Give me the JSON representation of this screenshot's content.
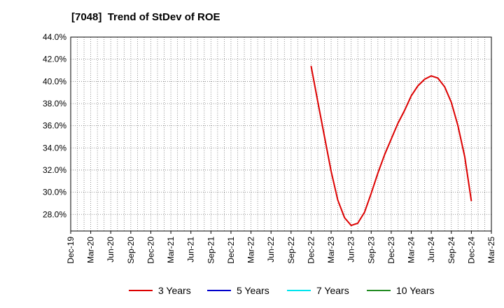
{
  "chart_data": {
    "type": "line",
    "title": "[7048]  Trend of StDev of ROE",
    "xlabel": "",
    "ylabel": "",
    "ylim": [
      26.5,
      44.0
    ],
    "yticks": [
      "28.0%",
      "30.0%",
      "32.0%",
      "34.0%",
      "36.0%",
      "38.0%",
      "40.0%",
      "42.0%",
      "44.0%"
    ],
    "ytick_values": [
      28,
      30,
      32,
      34,
      36,
      38,
      40,
      42,
      44
    ],
    "x_tick_labels": [
      "Dec-19",
      "Mar-20",
      "Jun-20",
      "Sep-20",
      "Dec-20",
      "Mar-21",
      "Jun-21",
      "Sep-21",
      "Dec-21",
      "Mar-22",
      "Jun-22",
      "Sep-22",
      "Dec-22",
      "Mar-23",
      "Jun-23",
      "Sep-23",
      "Dec-23",
      "Mar-24",
      "Jun-24",
      "Sep-24",
      "Dec-24",
      "Mar-25"
    ],
    "x_tick_labels_last": "Mar-25",
    "grid": true,
    "legend_position": "bottom",
    "series": [
      {
        "name": "3 Years",
        "color": "#dd0000",
        "points": [
          [
            12.0,
            41.4
          ],
          [
            12.33,
            38.2
          ],
          [
            12.67,
            35.0
          ],
          [
            13.0,
            31.9
          ],
          [
            13.33,
            29.3
          ],
          [
            13.67,
            27.7
          ],
          [
            14.0,
            27.0
          ],
          [
            14.33,
            27.2
          ],
          [
            14.67,
            28.2
          ],
          [
            15.0,
            29.9
          ],
          [
            15.33,
            31.7
          ],
          [
            15.67,
            33.4
          ],
          [
            16.0,
            34.8
          ],
          [
            16.33,
            36.2
          ],
          [
            16.67,
            37.4
          ],
          [
            17.0,
            38.7
          ],
          [
            17.33,
            39.6
          ],
          [
            17.67,
            40.2
          ],
          [
            18.0,
            40.5
          ],
          [
            18.33,
            40.3
          ],
          [
            18.67,
            39.5
          ],
          [
            19.0,
            38.1
          ],
          [
            19.33,
            36.0
          ],
          [
            19.67,
            33.2
          ],
          [
            20.0,
            29.2
          ]
        ]
      },
      {
        "name": "5 Years",
        "color": "#0000cc",
        "points": []
      },
      {
        "name": "7 Years",
        "color": "#00e5ee",
        "points": []
      },
      {
        "name": "10 Years",
        "color": "#228b22",
        "points": []
      }
    ]
  }
}
